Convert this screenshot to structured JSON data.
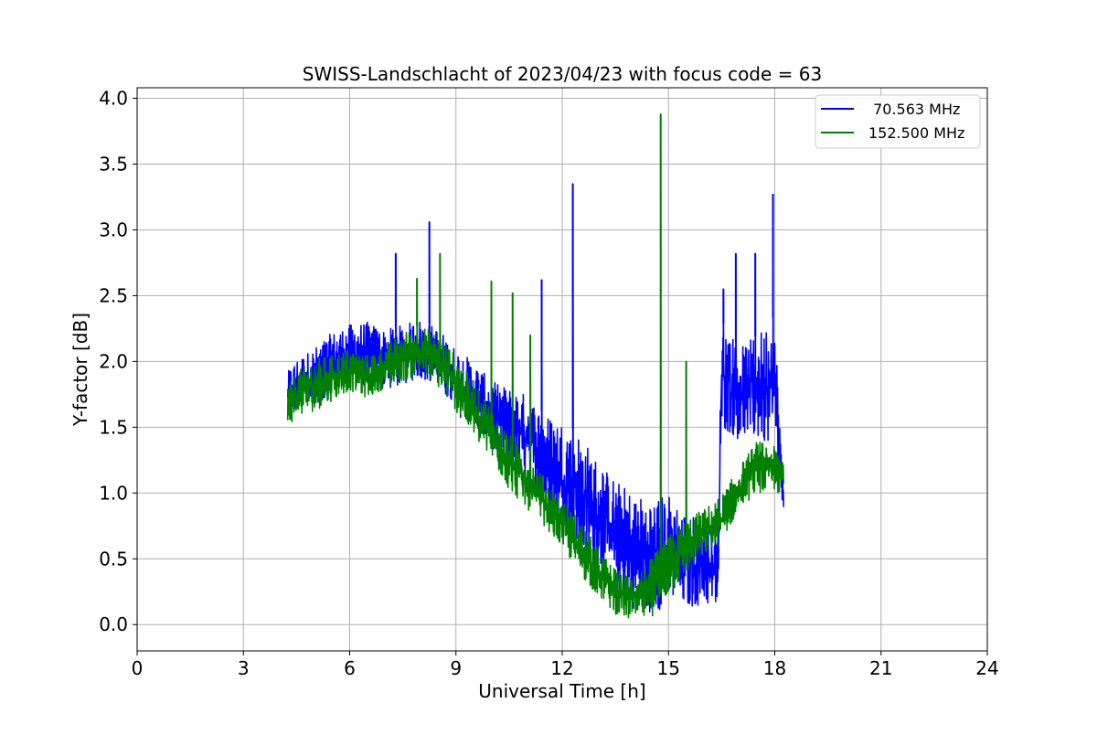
{
  "chart_data": {
    "type": "line",
    "title": "SWISS-Landschlacht of 2023/04/23 with focus code = 63",
    "xlabel": "Universal Time [h]",
    "ylabel": "Y-factor [dB]",
    "xlim": [
      0,
      24
    ],
    "ylim": [
      -0.2,
      4.08
    ],
    "x_ticks": [
      "0",
      "3",
      "6",
      "9",
      "12",
      "15",
      "18",
      "21",
      "24"
    ],
    "x_tick_values": [
      0,
      3,
      6,
      9,
      12,
      15,
      18,
      21,
      24
    ],
    "y_ticks": [
      "0.0",
      "0.5",
      "1.0",
      "1.5",
      "2.0",
      "2.5",
      "3.0",
      "3.5",
      "4.0"
    ],
    "y_tick_values": [
      0.0,
      0.5,
      1.0,
      1.5,
      2.0,
      2.5,
      3.0,
      3.5,
      4.0
    ],
    "grid": true,
    "legend_position": "top-right",
    "series": [
      {
        "name": " 70.563 MHz",
        "color": "#0000ff",
        "envelope": {
          "x": [
            4.25,
            4.5,
            5.0,
            5.5,
            6.0,
            6.5,
            7.0,
            7.5,
            8.0,
            8.5,
            9.0,
            9.5,
            10.0,
            10.5,
            11.0,
            11.5,
            12.0,
            12.5,
            13.0,
            13.5,
            14.0,
            14.5,
            15.0,
            15.5,
            16.0,
            16.4,
            16.5,
            16.7,
            17.0,
            17.5,
            18.0,
            18.25
          ],
          "lower": [
            1.6,
            1.62,
            1.68,
            1.72,
            1.85,
            1.8,
            1.78,
            1.82,
            1.88,
            1.8,
            1.6,
            1.5,
            1.35,
            1.25,
            1.1,
            0.9,
            0.7,
            0.55,
            0.4,
            0.25,
            0.12,
            0.08,
            0.15,
            0.12,
            0.15,
            0.1,
            1.5,
            1.45,
            1.4,
            1.4,
            1.3,
            0.8
          ],
          "upper": [
            1.92,
            2.02,
            2.1,
            2.22,
            2.28,
            2.3,
            2.24,
            2.28,
            2.32,
            2.25,
            2.1,
            2.0,
            1.85,
            1.8,
            1.75,
            1.6,
            1.55,
            1.45,
            1.25,
            1.1,
            1.0,
            0.95,
            1.0,
            0.85,
            0.8,
            0.7,
            2.3,
            2.25,
            2.1,
            2.2,
            2.35,
            1.0
          ]
        },
        "spikes": [
          {
            "x": 7.3,
            "y": 2.82
          },
          {
            "x": 8.25,
            "y": 3.06
          },
          {
            "x": 11.42,
            "y": 2.62
          },
          {
            "x": 12.3,
            "y": 3.35
          },
          {
            "x": 16.55,
            "y": 2.55
          },
          {
            "x": 16.9,
            "y": 2.82
          },
          {
            "x": 17.45,
            "y": 2.82
          },
          {
            "x": 17.95,
            "y": 3.27
          }
        ]
      },
      {
        "name": "152.500 MHz",
        "color": "#008000",
        "envelope": {
          "x": [
            4.25,
            4.5,
            5.0,
            5.5,
            6.0,
            6.5,
            7.0,
            7.5,
            8.0,
            8.5,
            9.0,
            9.5,
            10.0,
            10.5,
            11.0,
            11.5,
            12.0,
            12.5,
            13.0,
            13.5,
            14.0,
            14.5,
            15.0,
            15.5,
            16.0,
            16.5,
            17.0,
            17.5,
            18.0,
            18.25
          ],
          "lower": [
            1.5,
            1.58,
            1.62,
            1.7,
            1.78,
            1.72,
            1.8,
            1.85,
            1.9,
            1.8,
            1.62,
            1.42,
            1.25,
            1.02,
            0.88,
            0.75,
            0.58,
            0.38,
            0.22,
            0.08,
            0.02,
            0.05,
            0.22,
            0.38,
            0.52,
            0.62,
            0.88,
            1.0,
            1.0,
            0.98
          ],
          "upper": [
            1.8,
            1.92,
            2.02,
            2.05,
            2.1,
            2.05,
            2.12,
            2.22,
            2.28,
            2.2,
            2.05,
            1.85,
            1.65,
            1.45,
            1.3,
            1.12,
            0.95,
            0.8,
            0.58,
            0.42,
            0.38,
            0.5,
            0.68,
            0.8,
            0.88,
            0.98,
            1.2,
            1.4,
            1.35,
            1.28
          ]
        },
        "spikes": [
          {
            "x": 8.55,
            "y": 2.82
          },
          {
            "x": 7.9,
            "y": 2.63
          },
          {
            "x": 10.0,
            "y": 2.61
          },
          {
            "x": 10.6,
            "y": 2.52
          },
          {
            "x": 11.1,
            "y": 2.2
          },
          {
            "x": 14.78,
            "y": 3.88
          },
          {
            "x": 15.5,
            "y": 2.0
          }
        ]
      }
    ]
  }
}
